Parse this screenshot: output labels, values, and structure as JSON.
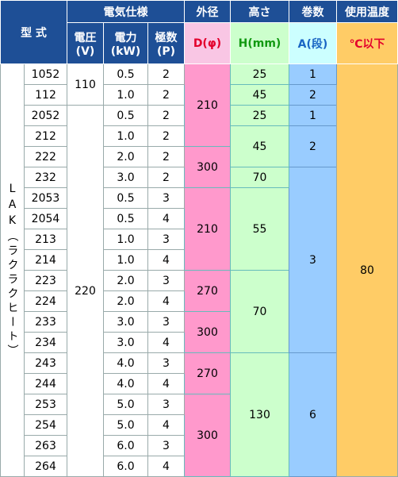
{
  "header": {
    "model": "型 式",
    "electrical": "電気仕様",
    "outer_diameter": "外径",
    "height": "高さ",
    "turns": "巻数",
    "temperature": "使用温度",
    "voltage": [
      "電圧",
      "(V)"
    ],
    "power": [
      "電力",
      "(kW)"
    ],
    "poles": [
      "極数",
      "(P)"
    ],
    "diameter_unit": "D(φ)",
    "height_unit": "H(mm)",
    "turns_unit": "A(段)",
    "temperature_unit": "℃以下"
  },
  "series_name": "LAK（ラクラクヒート）",
  "models": [
    "1052",
    "112",
    "2052",
    "212",
    "222",
    "232",
    "2053",
    "2054",
    "213",
    "214",
    "223",
    "224",
    "233",
    "234",
    "243",
    "244",
    "253",
    "254",
    "263",
    "264"
  ],
  "power": [
    "0.5",
    "1.0",
    "0.5",
    "1.0",
    "2.0",
    "3.0",
    "0.5",
    "0.5",
    "1.0",
    "1.0",
    "2.0",
    "2.0",
    "3.0",
    "3.0",
    "4.0",
    "4.0",
    "5.0",
    "5.0",
    "6.0",
    "6.0"
  ],
  "poles": [
    "2",
    "2",
    "2",
    "2",
    "2",
    "2",
    "3",
    "4",
    "3",
    "4",
    "3",
    "4",
    "3",
    "4",
    "3",
    "4",
    "3",
    "4",
    "3",
    "4"
  ],
  "voltage": [
    "110",
    "220"
  ],
  "diameter": [
    "210",
    "300",
    "210",
    "270",
    "300",
    "270",
    "300"
  ],
  "height": [
    "25",
    "45",
    "25",
    "45",
    "70",
    "55",
    "70",
    "130"
  ],
  "turns": [
    "1",
    "2",
    "1",
    "2",
    "3",
    "6"
  ],
  "temperature": "80"
}
